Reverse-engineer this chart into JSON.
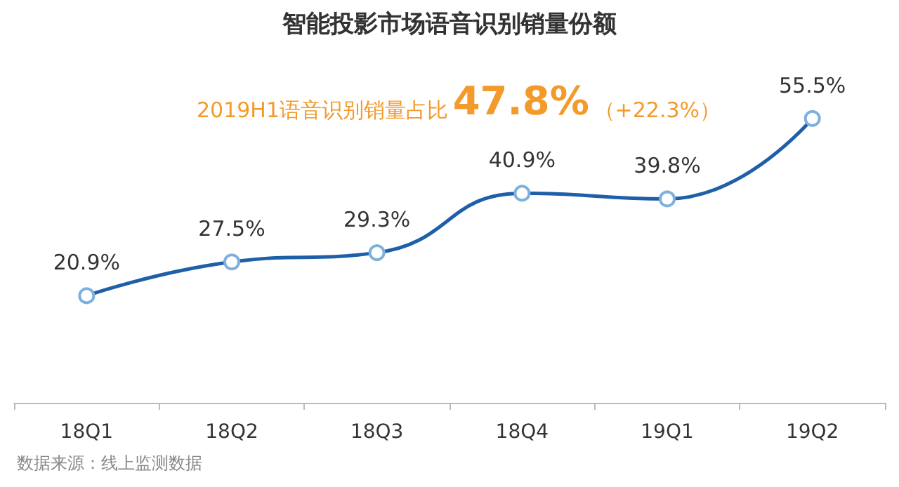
{
  "chart_data": {
    "type": "line",
    "title": "智能投影市场语音识别销量份额",
    "categories": [
      "18Q1",
      "18Q2",
      "18Q3",
      "18Q4",
      "19Q1",
      "19Q2"
    ],
    "series": [
      {
        "color": "#1f5fa8",
        "values": [
          20.9,
          27.5,
          29.3,
          40.9,
          39.8,
          55.5
        ],
        "value_labels": [
          "20.9%",
          "27.5%",
          "29.3%",
          "40.9%",
          "39.8%",
          "55.5%"
        ]
      }
    ],
    "annotations": [
      "2019H1语音识别销量占比",
      "47.8%",
      "（+22.3%）",
      "数据来源：线上监测数据"
    ],
    "marker": "circle",
    "line_style": "solid",
    "grid": false
  }
}
